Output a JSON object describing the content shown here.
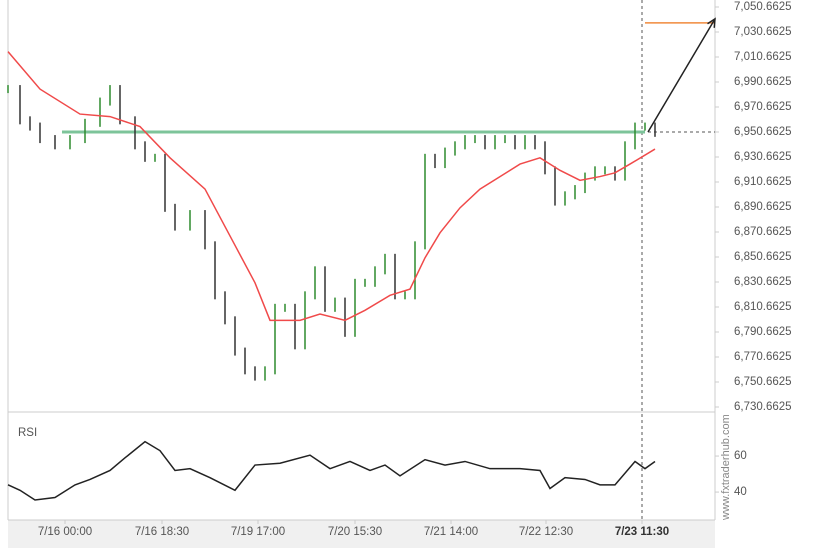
{
  "chart_data": {
    "type": "candlestick-trend",
    "price": {
      "name": "Price",
      "color_up": "#2e8b2e",
      "color_down": "#333333",
      "x": [
        0,
        12,
        22,
        32,
        47,
        62,
        77,
        92,
        102,
        112,
        127,
        137,
        147,
        157,
        167,
        182,
        197,
        207,
        217,
        227,
        237,
        247,
        257,
        267,
        277,
        287,
        297,
        307,
        317,
        327,
        337,
        347,
        357,
        367,
        377,
        387,
        397,
        407,
        417,
        427,
        437,
        447,
        457,
        467,
        477,
        487,
        497,
        507,
        517,
        527,
        537,
        547,
        557,
        567,
        577,
        587,
        597,
        607,
        617,
        627,
        637,
        647
      ],
      "values": [
        6985,
        6960,
        6955,
        6945,
        6940,
        6945,
        6958,
        6975,
        6985,
        6960,
        6940,
        6930,
        6930,
        6890,
        6875,
        6885,
        6860,
        6820,
        6800,
        6775,
        6760,
        6755,
        6760,
        6810,
        6810,
        6780,
        6820,
        6840,
        6810,
        6815,
        6790,
        6830,
        6830,
        6840,
        6850,
        6820,
        6820,
        6860,
        6930,
        6925,
        6935,
        6940,
        6945,
        6945,
        6940,
        6945,
        6945,
        6940,
        6945,
        6940,
        6920,
        6895,
        6900,
        6905,
        6915,
        6920,
        6920,
        6915,
        6940,
        6955,
        6955,
        6950
      ]
    },
    "moving_average": {
      "name": "MA",
      "color": "#f04a4a",
      "x": [
        0,
        32,
        72,
        102,
        132,
        162,
        197,
        227,
        247,
        262,
        292,
        312,
        337,
        357,
        382,
        402,
        417,
        432,
        452,
        472,
        492,
        512,
        532,
        552,
        572,
        592,
        607,
        622,
        647
      ],
      "values": [
        7015,
        6985,
        6965,
        6963,
        6955,
        6930,
        6905,
        6860,
        6830,
        6800,
        6800,
        6805,
        6800,
        6808,
        6820,
        6825,
        6850,
        6870,
        6890,
        6905,
        6915,
        6925,
        6930,
        6920,
        6912,
        6915,
        6918,
        6925,
        6937
      ]
    },
    "level": {
      "value": 6950.6625,
      "color": "#7dc49a",
      "x": [
        54,
        637
      ]
    },
    "target": {
      "value": 7038,
      "color": "#f08a3c",
      "x": [
        637,
        707
      ]
    },
    "current_x": 634,
    "xlim": [
      0,
      707
    ],
    "ylim": [
      6728.2625,
      7056.2625
    ],
    "yticks": [
      {
        "value": 7050.6625,
        "label": "7,050.6625"
      },
      {
        "value": 7030.6625,
        "label": "7,030.6625"
      },
      {
        "value": 7010.6625,
        "label": "7,010.6625"
      },
      {
        "value": 6990.6625,
        "label": "6,990.6625"
      },
      {
        "value": 6970.6625,
        "label": "6,970.6625"
      },
      {
        "value": 6950.6625,
        "label": "6,950.6625"
      },
      {
        "value": 6930.6625,
        "label": "6,930.6625"
      },
      {
        "value": 6910.6625,
        "label": "6,910.6625"
      },
      {
        "value": 6890.6625,
        "label": "6,890.6625"
      },
      {
        "value": 6870.6625,
        "label": "6,870.6625"
      },
      {
        "value": 6850.6625,
        "label": "6,850.6625"
      },
      {
        "value": 6830.6625,
        "label": "6,830.6625"
      },
      {
        "value": 6810.6625,
        "label": "6,810.6625"
      },
      {
        "value": 6790.6625,
        "label": "6,790.6625"
      },
      {
        "value": 6770.6625,
        "label": "6,770.6625"
      },
      {
        "value": 6750.6625,
        "label": "6,750.6625"
      },
      {
        "value": 6730.6625,
        "label": "6,730.6625"
      }
    ],
    "xticks": [
      {
        "value": 57,
        "label": "7/16 00:00"
      },
      {
        "value": 154,
        "label": "7/16 18:30"
      },
      {
        "value": 250,
        "label": "7/19 17:00"
      },
      {
        "value": 347,
        "label": "7/20 15:30"
      },
      {
        "value": 443,
        "label": "7/21 14:00"
      },
      {
        "value": 538,
        "label": "7/22 12:30"
      },
      {
        "value": 634,
        "label": "7/23 11:30"
      }
    ],
    "rsi": {
      "name": "RSI",
      "x": [
        0,
        12,
        27,
        47,
        67,
        82,
        102,
        117,
        137,
        152,
        167,
        182,
        202,
        227,
        247,
        272,
        302,
        322,
        342,
        362,
        377,
        392,
        417,
        437,
        457,
        482,
        512,
        532,
        542,
        557,
        577,
        592,
        607,
        627,
        637,
        647
      ],
      "values": [
        44,
        41,
        35.6,
        37,
        44,
        47,
        52,
        59,
        68,
        63,
        52,
        53,
        48,
        41,
        55,
        56,
        60.5,
        53,
        57,
        52,
        55,
        49,
        58,
        55,
        57,
        53,
        53,
        52,
        42,
        48,
        47,
        44,
        44,
        57,
        53,
        57
      ],
      "ylim": [
        25.6,
        82.8
      ],
      "yticks": [
        60,
        40
      ]
    },
    "watermark": "www.fxtraderhub.com"
  }
}
